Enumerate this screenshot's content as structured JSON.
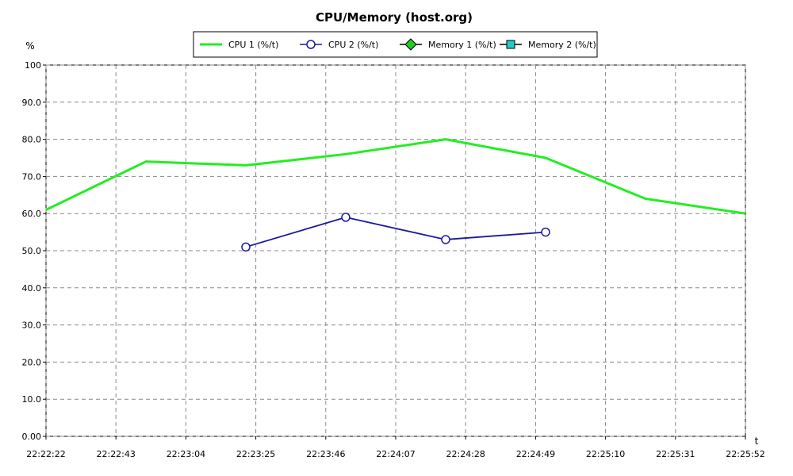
{
  "chart_data": {
    "type": "line",
    "title": "CPU/Memory (host.org)",
    "ylabel": "%",
    "xlabel": "t",
    "ylim": [
      0,
      100
    ],
    "y_ticks": [
      "0.00",
      "10.0",
      "20.0",
      "30.0",
      "40.0",
      "50.0",
      "60.0",
      "70.0",
      "80.0",
      "90.0",
      "100"
    ],
    "x_ticks": [
      "22:22:22",
      "22:22:43",
      "22:23:04",
      "22:23:25",
      "22:23:46",
      "22:24:07",
      "22:24:28",
      "22:24:49",
      "22:25:10",
      "22:25:31",
      "22:25:52"
    ],
    "grid": true,
    "legend_position": "top",
    "series": [
      {
        "name": "CPU 1 (%/t)",
        "color": "#22ee22",
        "marker": "none",
        "points": [
          {
            "x": "22:22:22",
            "y": 61
          },
          {
            "x": "22:22:52",
            "y": 74
          },
          {
            "x": "22:23:22",
            "y": 73
          },
          {
            "x": "22:23:52",
            "y": 76
          },
          {
            "x": "22:24:22",
            "y": 80
          },
          {
            "x": "22:24:52",
            "y": 75
          },
          {
            "x": "22:25:22",
            "y": 64
          },
          {
            "x": "22:25:52",
            "y": 60
          }
        ]
      },
      {
        "name": "CPU 2 (%/t)",
        "color": "#1a1aa0",
        "marker": "circle",
        "points": [
          {
            "x": "22:23:22",
            "y": 51
          },
          {
            "x": "22:23:52",
            "y": 59
          },
          {
            "x": "22:24:22",
            "y": 53
          },
          {
            "x": "22:24:52",
            "y": 55
          }
        ]
      },
      {
        "name": "Memory 1 (%/t)",
        "color": "#22cc22",
        "marker": "diamond",
        "points": []
      },
      {
        "name": "Memory 2 (%/t)",
        "color": "#22cccc",
        "marker": "square",
        "points": []
      }
    ]
  }
}
